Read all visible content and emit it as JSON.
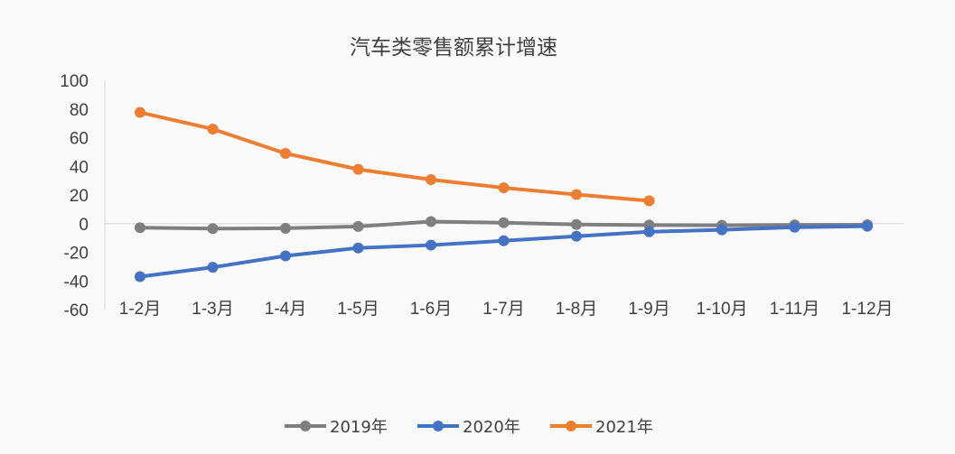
{
  "chart_data": {
    "type": "line",
    "title": "汽车类零售额累计增速",
    "categories": [
      "1-2月",
      "1-3月",
      "1-4月",
      "1-5月",
      "1-6月",
      "1-7月",
      "1-8月",
      "1-9月",
      "1-10月",
      "1-11月",
      "1-12月"
    ],
    "ylim": [
      -60,
      100
    ],
    "yticks": [
      100,
      80,
      60,
      40,
      20,
      0,
      -20,
      -40,
      -60
    ],
    "ytick_labels": [
      "100",
      "80",
      "60",
      "40",
      "20",
      "0",
      "-20",
      "-40",
      "-60"
    ],
    "xlabel": "",
    "ylabel": "",
    "grid": false,
    "legend_position": "bottom",
    "series": [
      {
        "name": "2019年",
        "color": "#7f7f7f",
        "values": [
          -2.8,
          -3.5,
          -3.2,
          -2.0,
          1.4,
          0.6,
          -0.6,
          -1.0,
          -1.2,
          -0.9,
          -0.8
        ]
      },
      {
        "name": "2020年",
        "color": "#4472c4",
        "values": [
          -37.0,
          -30.5,
          -22.5,
          -17.0,
          -15.0,
          -12.0,
          -8.8,
          -5.7,
          -4.3,
          -2.5,
          -1.8
        ]
      },
      {
        "name": "2021年",
        "color": "#ed7d31",
        "values": [
          77.6,
          66.0,
          49.0,
          37.9,
          30.7,
          25.0,
          20.3,
          15.9,
          null,
          null,
          null
        ]
      }
    ]
  }
}
